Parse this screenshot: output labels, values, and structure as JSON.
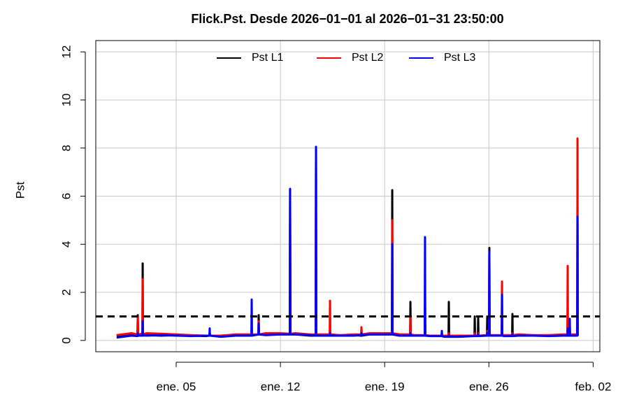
{
  "chart_data": {
    "type": "line",
    "title": "Flick.Pst. Desde  2026−01−01  al  2026−01−31 23:50:00",
    "y_label": "Pst",
    "x": [
      1,
      2,
      2.4,
      2.42,
      2.44,
      2.73,
      2.75,
      2.77,
      3,
      4,
      5,
      6,
      7,
      7.23,
      7.25,
      7.27,
      8,
      9,
      10,
      10.05,
      10.07,
      10.09,
      10.52,
      10.54,
      10.56,
      11,
      12,
      12.63,
      12.65,
      12.67,
      13,
      14,
      14.37,
      14.39,
      14.41,
      15,
      15.31,
      15.33,
      15.35,
      16,
      17,
      17.42,
      17.44,
      17.46,
      18,
      19,
      19.49,
      19.51,
      19.53,
      20,
      20.71,
      20.73,
      20.75,
      21,
      21.69,
      21.71,
      21.73,
      22,
      22.82,
      22.84,
      22.86,
      23,
      23.29,
      23.31,
      23.33,
      24,
      25,
      25.03,
      25.05,
      25.07,
      25.26,
      25.28,
      25.3,
      25.87,
      25.89,
      25.91,
      26.01,
      26.03,
      26.05,
      26.86,
      26.88,
      26.9,
      27,
      27.56,
      27.58,
      27.6,
      28,
      29,
      30,
      31,
      31.27,
      31.29,
      31.31,
      31.41,
      31.43,
      31.45,
      31.93,
      31.95,
      31.97,
      32
    ],
    "series": [
      {
        "name": "Pst L1",
        "color": "#000000",
        "values": [
          0.2,
          0.25,
          0.2,
          1.05,
          0.22,
          0.2,
          3.2,
          0.2,
          0.22,
          0.2,
          0.22,
          0.2,
          0.18,
          0.2,
          0.3,
          0.2,
          0.2,
          0.22,
          0.2,
          0.2,
          0.5,
          0.2,
          0.25,
          1.05,
          0.25,
          0.25,
          0.25,
          0.25,
          6.25,
          0.25,
          0.25,
          0.2,
          0.2,
          8.0,
          0.2,
          0.22,
          0.2,
          0.4,
          0.2,
          0.2,
          0.22,
          0.2,
          0.3,
          0.2,
          0.25,
          0.25,
          0.25,
          6.25,
          0.25,
          0.2,
          0.2,
          1.6,
          0.2,
          0.2,
          0.2,
          1.5,
          0.2,
          0.2,
          0.2,
          0.3,
          0.2,
          0.18,
          0.18,
          1.6,
          0.18,
          0.18,
          0.2,
          0.2,
          1.0,
          0.2,
          0.2,
          1.0,
          0.2,
          0.2,
          1.0,
          0.2,
          0.2,
          3.85,
          0.2,
          0.2,
          1.0,
          0.2,
          0.2,
          0.2,
          1.1,
          0.2,
          0.22,
          0.2,
          0.2,
          0.22,
          0.22,
          0.8,
          0.22,
          0.22,
          0.5,
          0.22,
          0.22,
          5.1,
          0.22,
          0.2
        ]
      },
      {
        "name": "Pst L2",
        "color": "#ff0000",
        "values": [
          0.22,
          0.3,
          0.25,
          1.0,
          0.25,
          0.28,
          2.55,
          0.25,
          0.3,
          0.28,
          0.25,
          0.22,
          0.2,
          0.2,
          0.3,
          0.2,
          0.2,
          0.25,
          0.25,
          0.25,
          0.5,
          0.25,
          0.25,
          0.8,
          0.25,
          0.3,
          0.3,
          0.28,
          6.3,
          0.28,
          0.3,
          0.25,
          0.25,
          8.05,
          0.25,
          0.25,
          0.25,
          1.65,
          0.25,
          0.22,
          0.25,
          0.25,
          0.55,
          0.25,
          0.3,
          0.3,
          0.3,
          5.0,
          0.3,
          0.25,
          0.25,
          1.0,
          0.25,
          0.22,
          0.22,
          1.2,
          0.22,
          0.2,
          0.2,
          0.3,
          0.2,
          0.2,
          0.2,
          0.3,
          0.2,
          0.2,
          0.2,
          0.2,
          0.3,
          0.2,
          0.2,
          0.3,
          0.2,
          0.22,
          0.4,
          0.22,
          0.22,
          3.6,
          0.22,
          0.22,
          2.45,
          0.22,
          0.22,
          0.22,
          0.3,
          0.22,
          0.25,
          0.22,
          0.22,
          0.25,
          0.25,
          3.1,
          0.25,
          0.25,
          0.6,
          0.25,
          0.25,
          8.4,
          0.25,
          0.22
        ]
      },
      {
        "name": "Pst L3",
        "color": "#0000ff",
        "values": [
          0.12,
          0.2,
          0.18,
          0.3,
          0.2,
          0.2,
          0.8,
          0.22,
          0.2,
          0.22,
          0.2,
          0.18,
          0.2,
          0.2,
          0.5,
          0.2,
          0.15,
          0.2,
          0.2,
          0.2,
          1.7,
          0.2,
          0.25,
          0.7,
          0.25,
          0.22,
          0.25,
          0.25,
          6.3,
          0.25,
          0.25,
          0.22,
          0.2,
          8.05,
          0.2,
          0.2,
          0.2,
          0.3,
          0.2,
          0.2,
          0.2,
          0.22,
          0.3,
          0.22,
          0.25,
          0.25,
          0.25,
          4.0,
          0.25,
          0.2,
          0.2,
          0.3,
          0.2,
          0.2,
          0.2,
          4.3,
          0.2,
          0.18,
          0.18,
          0.4,
          0.18,
          0.15,
          0.15,
          0.2,
          0.15,
          0.15,
          0.18,
          0.18,
          0.2,
          0.18,
          0.18,
          0.25,
          0.18,
          0.2,
          0.3,
          0.2,
          0.2,
          3.7,
          0.2,
          0.2,
          1.9,
          0.2,
          0.18,
          0.18,
          0.25,
          0.18,
          0.2,
          0.2,
          0.18,
          0.2,
          0.2,
          0.5,
          0.2,
          0.2,
          0.9,
          0.2,
          0.2,
          5.15,
          0.2,
          0.18
        ]
      }
    ],
    "xlim": [
      -0.4,
      33.45
    ],
    "xticks": [
      {
        "value": 5,
        "label": "ene. 05"
      },
      {
        "value": 12,
        "label": "ene. 12"
      },
      {
        "value": 19,
        "label": "ene. 19"
      },
      {
        "value": 26,
        "label": "ene. 26"
      },
      {
        "value": 33,
        "label": "feb. 02"
      }
    ],
    "ylim": [
      -0.47,
      12.47
    ],
    "yticks": [
      0,
      2,
      4,
      6,
      8,
      10,
      12
    ],
    "grid": true,
    "hline": 1,
    "legend": "top"
  }
}
